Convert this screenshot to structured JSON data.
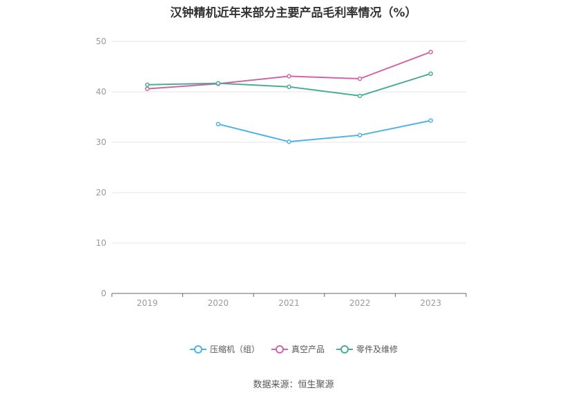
{
  "chart_data": {
    "type": "line",
    "title": "汉钟精机近年来部分主要产品毛利率情况（%）",
    "categories": [
      "2019",
      "2020",
      "2021",
      "2022",
      "2023"
    ],
    "ylim": [
      0,
      50
    ],
    "yticks": [
      0,
      10,
      20,
      30,
      40,
      50
    ],
    "grid": true,
    "legend_position": "bottom",
    "series": [
      {
        "name": "压缩机（组）",
        "color": "#4db3e6",
        "values": [
          null,
          33.6,
          30.1,
          31.4,
          34.3
        ]
      },
      {
        "name": "真空产品",
        "color": "#d064a6",
        "values": [
          40.6,
          41.6,
          43.1,
          42.6,
          47.9
        ]
      },
      {
        "name": "零件及维修",
        "color": "#4aac93",
        "values": [
          41.4,
          41.7,
          41.0,
          39.2,
          43.6
        ]
      }
    ]
  },
  "source": "数据来源：恒生聚源"
}
